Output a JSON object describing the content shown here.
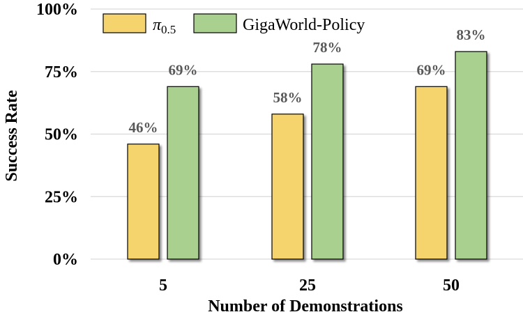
{
  "chart_data": {
    "type": "bar",
    "categories": [
      "5",
      "25",
      "50"
    ],
    "series": [
      {
        "name": "π",
        "name_sub": "0.5",
        "values": [
          46,
          58,
          69
        ],
        "labels": [
          "46%",
          "58%",
          "69%"
        ],
        "color": "#f5d46e"
      },
      {
        "name": "GigaWorld-Policy",
        "values": [
          69,
          78,
          83
        ],
        "labels": [
          "69%",
          "78%",
          "83%"
        ],
        "color": "#a9d08e"
      }
    ],
    "xlabel": "Number of Demonstrations",
    "ylabel": "Success Rate",
    "ylim": [
      0,
      100
    ],
    "yticks": [
      0,
      25,
      50,
      75,
      100
    ],
    "ytick_labels": [
      "0%",
      "25%",
      "50%",
      "75%",
      "100%"
    ],
    "grid": true,
    "legend_position": "top-left"
  }
}
